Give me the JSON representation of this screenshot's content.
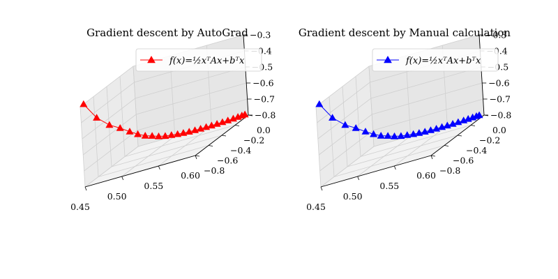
{
  "chart_data": [
    {
      "type": "line3d",
      "title": "Gradient descent by AutoGrad",
      "legend": {
        "label": "f(x)=½xᵀAx+bᵀx",
        "placement": "upper-right"
      },
      "color": "#ff0000",
      "marker": "triangle-up",
      "xlim": [
        0.45,
        0.6
      ],
      "xticks": [
        "0.45",
        "0.50",
        "0.55",
        "0.60"
      ],
      "ylim": [
        -0.8,
        0.0
      ],
      "yticks": [
        "0.0",
        "−0.2",
        "−0.4",
        "−0.6",
        "−0.8"
      ],
      "zlim": [
        -0.8,
        -0.3
      ],
      "zticks": [
        "−0.3",
        "−0.4",
        "−0.5",
        "−0.6",
        "−0.7",
        "−0.8"
      ],
      "x": [
        0.45,
        0.46,
        0.47,
        0.478,
        0.485,
        0.491,
        0.497,
        0.503,
        0.509,
        0.515,
        0.521,
        0.527,
        0.533,
        0.539,
        0.545,
        0.551,
        0.557,
        0.563,
        0.569,
        0.575,
        0.581,
        0.587,
        0.592,
        0.596,
        0.599
      ],
      "y": [
        -0.05,
        -0.12,
        -0.19,
        -0.255,
        -0.315,
        -0.365,
        -0.405,
        -0.44,
        -0.47,
        -0.5,
        -0.525,
        -0.55,
        -0.57,
        -0.59,
        -0.61,
        -0.628,
        -0.645,
        -0.66,
        -0.675,
        -0.69,
        -0.705,
        -0.72,
        -0.735,
        -0.75,
        -0.762
      ],
      "z": [
        -0.3,
        -0.42,
        -0.5,
        -0.55,
        -0.6,
        -0.64,
        -0.67,
        -0.69,
        -0.71,
        -0.725,
        -0.735,
        -0.745,
        -0.752,
        -0.758,
        -0.763,
        -0.767,
        -0.77,
        -0.773,
        -0.775,
        -0.777,
        -0.779,
        -0.78,
        -0.781,
        -0.782,
        -0.783
      ]
    },
    {
      "type": "line3d",
      "title": "Gradient descent by Manual calculation",
      "legend": {
        "label": "f(x)=½xᵀAx+bᵀx",
        "placement": "upper-right"
      },
      "color": "#0000ff",
      "marker": "triangle-up",
      "xlim": [
        0.45,
        0.6
      ],
      "xticks": [
        "0.45",
        "0.50",
        "0.55",
        "0.60"
      ],
      "ylim": [
        -0.8,
        0.0
      ],
      "yticks": [
        "0.0",
        "−0.2",
        "−0.4",
        "−0.6",
        "−0.8"
      ],
      "zlim": [
        -0.8,
        -0.3
      ],
      "zticks": [
        "−0.3",
        "−0.4",
        "−0.5",
        "−0.6",
        "−0.7",
        "−0.8"
      ],
      "x": [
        0.45,
        0.46,
        0.47,
        0.478,
        0.485,
        0.491,
        0.497,
        0.503,
        0.509,
        0.515,
        0.521,
        0.527,
        0.533,
        0.539,
        0.545,
        0.551,
        0.557,
        0.563,
        0.569,
        0.575,
        0.581,
        0.586,
        0.591,
        0.595,
        0.598
      ],
      "y": [
        -0.05,
        -0.12,
        -0.19,
        -0.255,
        -0.315,
        -0.365,
        -0.405,
        -0.44,
        -0.47,
        -0.5,
        -0.525,
        -0.55,
        -0.57,
        -0.59,
        -0.61,
        -0.628,
        -0.645,
        -0.66,
        -0.675,
        -0.69,
        -0.705,
        -0.718,
        -0.73,
        -0.742,
        -0.752
      ],
      "z": [
        -0.3,
        -0.42,
        -0.5,
        -0.55,
        -0.6,
        -0.64,
        -0.67,
        -0.69,
        -0.71,
        -0.725,
        -0.735,
        -0.745,
        -0.752,
        -0.758,
        -0.763,
        -0.767,
        -0.77,
        -0.773,
        -0.775,
        -0.777,
        -0.779,
        -0.78,
        -0.781,
        -0.782,
        -0.783
      ]
    }
  ]
}
